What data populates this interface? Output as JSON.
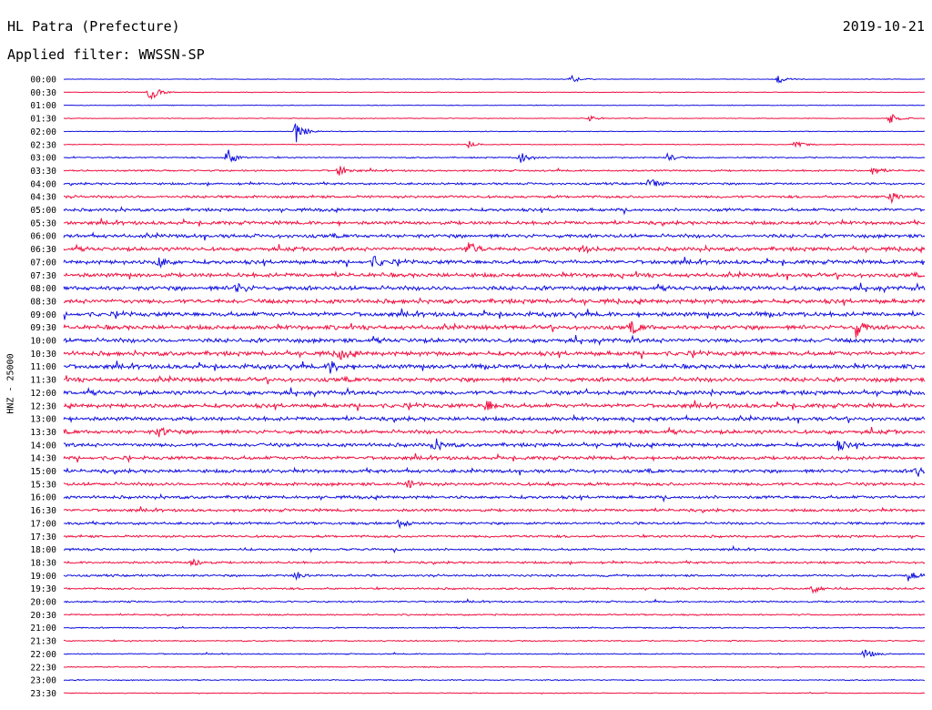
{
  "header": {
    "station": "HL Patra (Prefecture)",
    "date": "2019-10-21",
    "filter": "Applied filter: WWSSN-SP"
  },
  "chart_data": {
    "type": "line",
    "ylabel": "HNZ - 25000",
    "row_labels": [
      "00:00",
      "00:30",
      "01:00",
      "01:30",
      "02:00",
      "02:30",
      "03:00",
      "03:30",
      "04:00",
      "04:30",
      "05:00",
      "05:30",
      "06:00",
      "06:30",
      "07:00",
      "07:30",
      "08:00",
      "08:30",
      "09:00",
      "09:30",
      "10:00",
      "10:30",
      "11:00",
      "11:30",
      "12:00",
      "12:30",
      "13:00",
      "13:30",
      "14:00",
      "14:30",
      "15:00",
      "15:30",
      "16:00",
      "16:30",
      "17:00",
      "17:30",
      "18:00",
      "18:30",
      "19:00",
      "19:30",
      "20:00",
      "20:30",
      "21:00",
      "21:30",
      "22:00",
      "22:30",
      "23:00",
      "23:30"
    ],
    "series_colors": [
      "#1010e0",
      "#f01040"
    ],
    "noise_level": [
      0.3,
      0.3,
      0.3,
      0.35,
      0.35,
      0.4,
      0.6,
      0.8,
      1.0,
      1.2,
      1.4,
      1.6,
      1.7,
      1.8,
      1.8,
      1.9,
      2.0,
      2.0,
      2.0,
      2.0,
      2.0,
      2.0,
      2.0,
      2.0,
      1.9,
      1.9,
      1.8,
      1.8,
      1.7,
      1.6,
      1.6,
      1.5,
      1.4,
      1.3,
      1.2,
      1.1,
      1.0,
      1.0,
      1.0,
      0.9,
      0.8,
      0.7,
      0.6,
      0.6,
      0.5,
      0.5,
      0.5,
      0.4
    ],
    "events": [
      {
        "row": 0,
        "t": 0.59,
        "amp": 4
      },
      {
        "row": 0,
        "t": 0.83,
        "amp": 5
      },
      {
        "row": 1,
        "t": 0.1,
        "amp": 11
      },
      {
        "row": 3,
        "t": 0.96,
        "amp": 6
      },
      {
        "row": 3,
        "t": 0.61,
        "amp": 3
      },
      {
        "row": 4,
        "t": 0.27,
        "amp": 12
      },
      {
        "row": 5,
        "t": 0.47,
        "amp": 4
      },
      {
        "row": 5,
        "t": 0.85,
        "amp": 4
      },
      {
        "row": 6,
        "t": 0.19,
        "amp": 10
      },
      {
        "row": 6,
        "t": 0.53,
        "amp": 8
      },
      {
        "row": 6,
        "t": 0.7,
        "amp": 5
      },
      {
        "row": 7,
        "t": 0.32,
        "amp": 6
      },
      {
        "row": 7,
        "t": 0.94,
        "amp": 5
      },
      {
        "row": 8,
        "t": 0.68,
        "amp": 6
      },
      {
        "row": 9,
        "t": 0.96,
        "amp": 6
      },
      {
        "row": 13,
        "t": 0.47,
        "amp": 9
      },
      {
        "row": 13,
        "t": 0.6,
        "amp": 6
      },
      {
        "row": 14,
        "t": 0.11,
        "amp": 6
      },
      {
        "row": 14,
        "t": 0.36,
        "amp": 6
      },
      {
        "row": 16,
        "t": 0.2,
        "amp": 6
      },
      {
        "row": 19,
        "t": 0.66,
        "amp": 6
      },
      {
        "row": 19,
        "t": 0.92,
        "amp": 10
      },
      {
        "row": 21,
        "t": 0.32,
        "amp": 6
      },
      {
        "row": 22,
        "t": 0.31,
        "amp": 7
      },
      {
        "row": 25,
        "t": 0.49,
        "amp": 7
      },
      {
        "row": 27,
        "t": 0.11,
        "amp": 6
      },
      {
        "row": 28,
        "t": 0.43,
        "amp": 7
      },
      {
        "row": 28,
        "t": 0.9,
        "amp": 5
      },
      {
        "row": 30,
        "t": 0.99,
        "amp": 7
      },
      {
        "row": 31,
        "t": 0.4,
        "amp": 4
      },
      {
        "row": 34,
        "t": 0.39,
        "amp": 5
      },
      {
        "row": 37,
        "t": 0.15,
        "amp": 5
      },
      {
        "row": 38,
        "t": 0.27,
        "amp": 5
      },
      {
        "row": 38,
        "t": 0.98,
        "amp": 6
      },
      {
        "row": 39,
        "t": 0.87,
        "amp": 5
      },
      {
        "row": 44,
        "t": 0.93,
        "amp": 6
      }
    ]
  }
}
